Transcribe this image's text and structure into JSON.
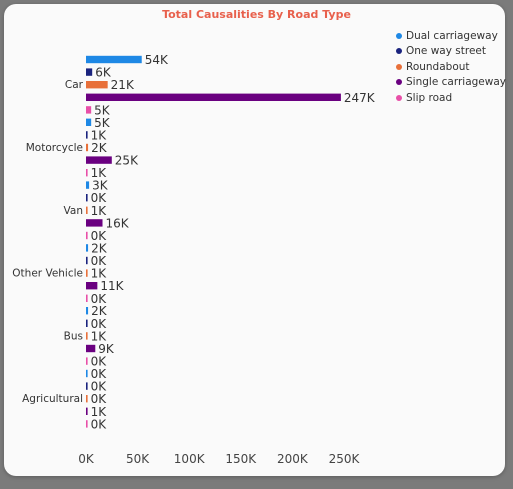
{
  "chart_data": {
    "type": "bar",
    "orientation": "horizontal",
    "title": "Total Causalities By Road Type",
    "xlabel": "",
    "ylabel": "",
    "xlim": [
      0,
      250000
    ],
    "x_ticks": [
      "0K",
      "50K",
      "100K",
      "150K",
      "200K",
      "250K"
    ],
    "x_tick_values": [
      0,
      50000,
      100000,
      150000,
      200000,
      250000
    ],
    "grid": false,
    "legend_position": "top-right",
    "categories": [
      "Car",
      "Motorcycle",
      "Van",
      "Other Vehicle",
      "Bus",
      "Agricultural"
    ],
    "series": [
      {
        "name": "Dual carriageway",
        "color": "#1e88e5",
        "values": [
          54000,
          5000,
          3000,
          2000,
          2000,
          0
        ],
        "labels": [
          "54K",
          "5K",
          "3K",
          "2K",
          "2K",
          "0K"
        ]
      },
      {
        "name": "One way street",
        "color": "#1a237e",
        "values": [
          6000,
          1000,
          0,
          0,
          0,
          0
        ],
        "labels": [
          "6K",
          "1K",
          "0K",
          "0K",
          "0K",
          "0K"
        ]
      },
      {
        "name": "Roundabout",
        "color": "#e8703a",
        "values": [
          21000,
          2000,
          1000,
          1000,
          1000,
          0
        ],
        "labels": [
          "21K",
          "2K",
          "1K",
          "1K",
          "1K",
          "0K"
        ]
      },
      {
        "name": "Single carriageway",
        "color": "#6a0080",
        "values": [
          247000,
          25000,
          16000,
          11000,
          9000,
          1000
        ],
        "labels": [
          "247K",
          "25K",
          "16K",
          "11K",
          "9K",
          "1K"
        ]
      },
      {
        "name": "Slip road",
        "color": "#e84fa8",
        "values": [
          5000,
          1000,
          0,
          0,
          0,
          0
        ],
        "labels": [
          "5K",
          "1K",
          "0K",
          "0K",
          "0K",
          "0K"
        ]
      }
    ]
  }
}
